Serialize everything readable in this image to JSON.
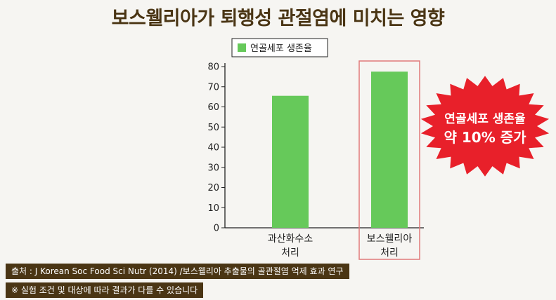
{
  "title": "보스웰리아가 퇴행성 관절염에 미치는 영향",
  "callout": {
    "line1": "연골세포 생존율",
    "line2": "약 10% 증가"
  },
  "notes": {
    "source": "출처 : J Korean Soc Food Sci Nutr (2014) /보스웰리아 추출물의 골관절염 억제 효과 연구",
    "disclaimer": "※ 실험 조건 및 대상에 따라 결과가 다를 수 있습니다"
  },
  "colors": {
    "bar": "#66c95a",
    "highlight_box": "#e07a7a",
    "callout_bg": "#e8202a",
    "title": "#4a3514"
  },
  "chart_data": {
    "type": "bar",
    "categories": [
      [
        "과산화수소",
        "처리"
      ],
      [
        "보스웰리아",
        "처리"
      ]
    ],
    "series": [
      {
        "name": "연골세포 생존율",
        "values": [
          65.5,
          77.5
        ]
      }
    ],
    "ylim": [
      0,
      80
    ],
    "yticks": [
      0,
      10,
      20,
      30,
      40,
      50,
      60,
      70,
      80
    ],
    "highlight_index": 1,
    "legend": "top-left",
    "grid": false
  }
}
